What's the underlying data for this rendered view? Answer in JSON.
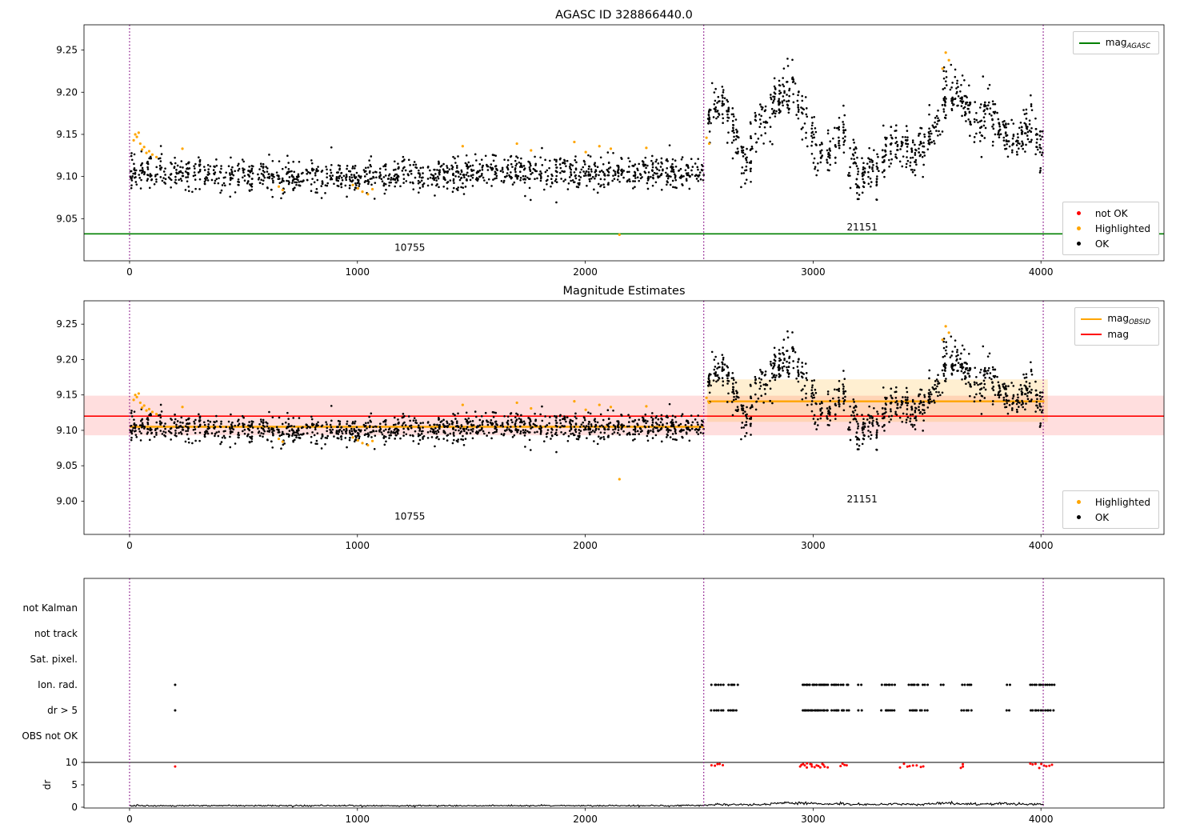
{
  "colors": {
    "ok": "#000000",
    "highlighted": "#ffa500",
    "not_ok": "#ff0000",
    "mag_agasc": "#008000",
    "mag_obsid": "#ffa500",
    "mag": "#ff0000",
    "boundary": "#800080",
    "flag_dot": "#000000",
    "dr_high_dot": "#ff0000",
    "mag_band": "rgba(255,0,0,0.13)",
    "obsid_band": "rgba(255,165,0,0.18)"
  },
  "chart_data": [
    {
      "id": "agasc-mags",
      "type": "scatter",
      "title": "AGASC ID 328866440.0",
      "xlim": [
        -200,
        4540
      ],
      "ylim": [
        9.0,
        9.28
      ],
      "xticks": [
        0,
        1000,
        2000,
        3000,
        4000
      ],
      "yticks": [
        9.05,
        9.1,
        9.15,
        9.2,
        9.25
      ],
      "mag_agasc": 9.032,
      "obsid_boundaries": [
        0,
        2520,
        4010
      ],
      "obsid_labels": [
        {
          "text": "10755",
          "x": 1230,
          "y": 9.012
        },
        {
          "text": "21151",
          "x": 3215,
          "y": 9.036
        }
      ],
      "legend_lines": [
        {
          "label": "mag",
          "sub": "AGASC",
          "color": "#008000"
        }
      ],
      "legend_markers": [
        {
          "label": "not OK",
          "color": "#ff0000"
        },
        {
          "label": "Highlighted",
          "color": "#ffa500"
        },
        {
          "label": "OK",
          "color": "#000000"
        }
      ],
      "series": {
        "ok_mean_profile_segments": [
          {
            "x0": 0,
            "x1": 2520,
            "clusters": 118,
            "points_per_cluster": 11,
            "x_jitter": 5,
            "cluster_sigma": 0.002,
            "point_sigma": 0.0095,
            "profile": [
              [
                0,
                9.106
              ],
              [
                300,
                9.104
              ],
              [
                650,
                9.1
              ],
              [
                1000,
                9.099
              ],
              [
                1250,
                9.103
              ],
              [
                1600,
                9.105
              ],
              [
                2000,
                9.104
              ],
              [
                2520,
                9.106
              ]
            ]
          },
          {
            "x0": 2535,
            "x1": 4010,
            "clusters": 72,
            "points_per_cluster": 13,
            "x_jitter": 4,
            "cluster_sigma": 0.006,
            "point_sigma": 0.014,
            "profile": [
              [
                2540,
                9.165
              ],
              [
                2600,
                9.2
              ],
              [
                2655,
                9.15
              ],
              [
                2690,
                9.12
              ],
              [
                2740,
                9.15
              ],
              [
                2820,
                9.18
              ],
              [
                2930,
                9.21
              ],
              [
                2990,
                9.13
              ],
              [
                3060,
                9.125
              ],
              [
                3120,
                9.15
              ],
              [
                3200,
                9.1
              ],
              [
                3290,
                9.11
              ],
              [
                3370,
                9.15
              ],
              [
                3440,
                9.115
              ],
              [
                3530,
                9.16
              ],
              [
                3620,
                9.21
              ],
              [
                3700,
                9.16
              ],
              [
                3770,
                9.17
              ],
              [
                3860,
                9.145
              ],
              [
                3950,
                9.16
              ],
              [
                4010,
                9.12
              ]
            ]
          }
        ],
        "highlighted": [
          [
            18,
            9.143
          ],
          [
            25,
            9.15
          ],
          [
            32,
            9.147
          ],
          [
            40,
            9.152
          ],
          [
            47,
            9.139
          ],
          [
            55,
            9.132
          ],
          [
            64,
            9.135
          ],
          [
            74,
            9.128
          ],
          [
            86,
            9.13
          ],
          [
            100,
            9.126
          ],
          [
            118,
            9.123
          ],
          [
            232,
            9.133
          ],
          [
            655,
            9.088
          ],
          [
            672,
            9.084
          ],
          [
            980,
            9.09
          ],
          [
            1002,
            9.086
          ],
          [
            1022,
            9.082
          ],
          [
            1046,
            9.079
          ],
          [
            1066,
            9.085
          ],
          [
            1462,
            9.136
          ],
          [
            1700,
            9.139
          ],
          [
            1762,
            9.131
          ],
          [
            1952,
            9.141
          ],
          [
            2002,
            9.129
          ],
          [
            2062,
            9.136
          ],
          [
            2112,
            9.133
          ],
          [
            2268,
            9.134
          ],
          [
            2150,
            9.031
          ],
          [
            2532,
            9.146
          ],
          [
            2544,
            9.139
          ],
          [
            3568,
            9.228
          ],
          [
            3582,
            9.247
          ],
          [
            3596,
            9.238
          ]
        ],
        "not_ok": []
      }
    },
    {
      "id": "magnitude-estimates",
      "type": "scatter",
      "title": "Magnitude Estimates",
      "xlim": [
        -200,
        4540
      ],
      "ylim": [
        8.953,
        9.283
      ],
      "xticks": [
        0,
        1000,
        2000,
        3000,
        4000
      ],
      "yticks": [
        9.0,
        9.05,
        9.1,
        9.15,
        9.2,
        9.25
      ],
      "mag_line": {
        "y": 9.12,
        "band": [
          9.093,
          9.149
        ]
      },
      "obsid_mag_segments": [
        {
          "x0": 0,
          "x1": 2520,
          "y": 9.105
        },
        {
          "x0": 2535,
          "x1": 4015,
          "y": 9.141,
          "band": [
            9.112,
            9.172
          ],
          "band_x1": 4030
        }
      ],
      "obsid_boundaries": [
        0,
        2520,
        4010
      ],
      "obsid_labels": [
        {
          "text": "10755",
          "x": 1230,
          "y": 8.974
        },
        {
          "text": "21151",
          "x": 3215,
          "y": 8.998
        }
      ],
      "legend_lines": [
        {
          "label": "mag",
          "sub": "OBSID",
          "color": "#ffa500"
        },
        {
          "label": "mag",
          "sub": "",
          "color": "#ff0000"
        }
      ],
      "legend_markers": [
        {
          "label": "Highlighted",
          "color": "#ffa500"
        },
        {
          "label": "OK",
          "color": "#000000"
        }
      ]
    },
    {
      "id": "flags",
      "type": "scatter",
      "title": "",
      "xlim": [
        -200,
        4540
      ],
      "xticks": [
        0,
        1000,
        2000,
        3000,
        4000
      ],
      "categories": [
        "not Kalman",
        "not track",
        "Sat. pixel.",
        "Ion. rad.",
        "dr > 5",
        "OBS not OK"
      ],
      "dr_axis": {
        "label": "dr",
        "ticks": [
          0,
          5,
          10
        ],
        "separator_line_at": 10
      },
      "obsid_boundaries": [
        0,
        2520,
        4010
      ],
      "flag_clusters": {
        "ion_rad": [
          [
            195,
            205,
            1
          ],
          [
            2550,
            2610,
            6
          ],
          [
            2625,
            2668,
            5
          ],
          [
            2950,
            3068,
            20
          ],
          [
            3078,
            3158,
            10
          ],
          [
            3196,
            3214,
            2
          ],
          [
            3298,
            3362,
            7
          ],
          [
            3415,
            3505,
            9
          ],
          [
            3558,
            3572,
            2
          ],
          [
            3648,
            3700,
            5
          ],
          [
            3845,
            3868,
            2
          ],
          [
            3948,
            4060,
            12
          ]
        ],
        "dr_gt_5": [
          [
            195,
            205,
            1
          ],
          [
            2550,
            2610,
            6
          ],
          [
            2625,
            2668,
            5
          ],
          [
            2950,
            3068,
            20
          ],
          [
            3078,
            3158,
            10
          ],
          [
            3196,
            3214,
            2
          ],
          [
            3298,
            3362,
            7
          ],
          [
            3415,
            3505,
            9
          ],
          [
            3648,
            3700,
            5
          ],
          [
            3845,
            3868,
            2
          ],
          [
            3948,
            4060,
            12
          ]
        ],
        "dr_near_10": [
          [
            195,
            205,
            1
          ],
          [
            2552,
            2608,
            5
          ],
          [
            2935,
            3065,
            17
          ],
          [
            3118,
            3152,
            4
          ],
          [
            3378,
            3492,
            8
          ],
          [
            3638,
            3668,
            3
          ],
          [
            3948,
            4055,
            9
          ]
        ]
      },
      "dr_profile": {
        "noise_left": 0.08,
        "noise_right": 0.14,
        "profile": [
          [
            0,
            0.33
          ],
          [
            600,
            0.34
          ],
          [
            1200,
            0.33
          ],
          [
            1800,
            0.34
          ],
          [
            2400,
            0.35
          ],
          [
            2520,
            0.4
          ],
          [
            2560,
            0.6
          ],
          [
            2700,
            0.55
          ],
          [
            2820,
            0.72
          ],
          [
            2870,
            1.05
          ],
          [
            2930,
            0.8
          ],
          [
            2990,
            0.92
          ],
          [
            3060,
            0.65
          ],
          [
            3130,
            0.78
          ],
          [
            3200,
            0.6
          ],
          [
            3300,
            0.66
          ],
          [
            3400,
            0.72
          ],
          [
            3480,
            0.62
          ],
          [
            3560,
            0.92
          ],
          [
            3650,
            0.72
          ],
          [
            3750,
            0.66
          ],
          [
            3820,
            0.82
          ],
          [
            3900,
            0.72
          ],
          [
            3960,
            0.62
          ],
          [
            4010,
            0.72
          ]
        ]
      }
    }
  ]
}
